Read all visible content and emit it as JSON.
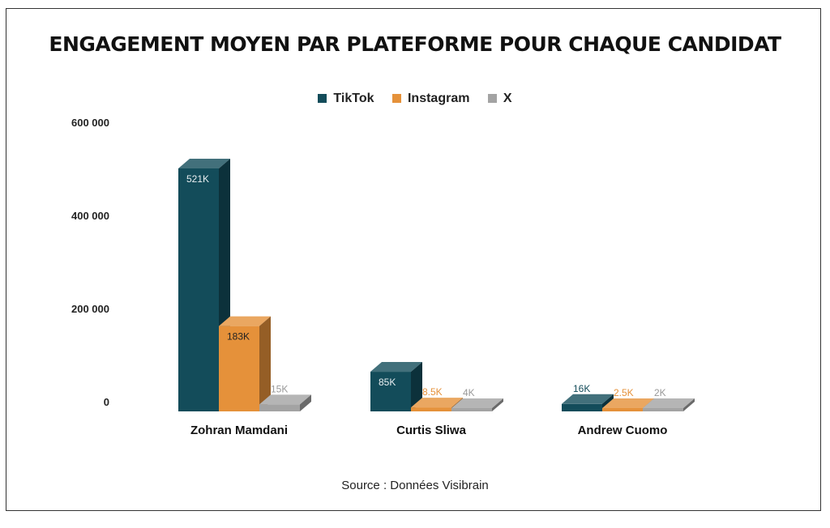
{
  "chart_data": {
    "type": "bar",
    "title": "ENGAGEMENT MOYEN PAR PLATEFORME POUR CHAQUE CANDIDAT",
    "categories": [
      "Zohran Mamdani",
      "Curtis Sliwa",
      "Andrew Cuomo"
    ],
    "series": [
      {
        "name": "TikTok",
        "color": "#134c5a",
        "values": [
          521000,
          85000,
          16000
        ],
        "labels": [
          "521K",
          "85K",
          "16K"
        ]
      },
      {
        "name": "Instagram",
        "color": "#e5913a",
        "values": [
          183000,
          8500,
          2500
        ],
        "labels": [
          "183K",
          "8.5K",
          "2.5K"
        ]
      },
      {
        "name": "X",
        "color": "#a3a3a3",
        "values": [
          15000,
          4000,
          2000
        ],
        "labels": [
          "15K",
          "4K",
          "2K"
        ]
      }
    ],
    "yticks": [
      0,
      200000,
      400000,
      600000
    ],
    "ytick_labels": [
      "0",
      "200 000",
      "400 000",
      "600 000"
    ],
    "ylim": [
      0,
      600000
    ],
    "legend": "top-center",
    "grid": false,
    "source": "Source : Données Visibrain"
  }
}
